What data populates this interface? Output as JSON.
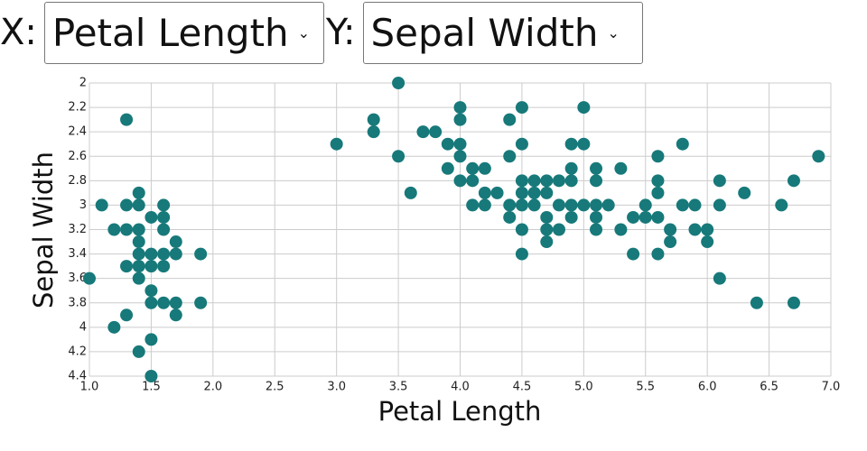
{
  "controls": {
    "x_label": "X:",
    "x_value": "Petal Length",
    "y_label": "Y:",
    "y_value": "Sepal Width"
  },
  "chart_data": {
    "type": "scatter",
    "x_label": "Petal Length",
    "y_label": "Sepal Width",
    "color": "#17797a",
    "grid": true,
    "xlim": [
      1,
      7
    ],
    "ylim": [
      4.4,
      2
    ],
    "xticks": [
      {
        "value": 1,
        "label": "1.0"
      },
      1.5,
      {
        "value": 2,
        "label": "2.0"
      },
      2.5,
      {
        "value": 3,
        "label": "3.0"
      },
      3.5,
      {
        "value": 4,
        "label": "4.0"
      },
      4.5,
      {
        "value": 5,
        "label": "5.0"
      },
      5.5,
      {
        "value": 6,
        "label": "6.0"
      },
      6.5,
      {
        "value": 7,
        "label": "7.0"
      }
    ],
    "yticks": [
      2,
      2.2,
      2.4,
      2.6,
      2.8,
      3,
      3.2,
      3.4,
      3.6,
      3.8,
      4,
      4.2,
      4.4
    ],
    "x": [
      1.3,
      1.1,
      1.0,
      1.2,
      1.3,
      1.3,
      1.3,
      1.3,
      1.2,
      1.4,
      1.4,
      1.4,
      1.4,
      1.4,
      1.4,
      1.4,
      1.4,
      1.5,
      1.5,
      1.5,
      1.5,
      1.5,
      1.5,
      1.5,
      1.6,
      1.6,
      1.6,
      1.6,
      1.6,
      1.6,
      1.7,
      1.7,
      1.7,
      1.7,
      1.9,
      1.9,
      3.0,
      3.3,
      3.3,
      3.5,
      3.5,
      3.6,
      3.7,
      3.8,
      3.9,
      3.9,
      4.0,
      4.0,
      4.0,
      4.0,
      4.0,
      4.1,
      4.1,
      4.1,
      4.2,
      4.2,
      4.2,
      4.3,
      4.4,
      4.4,
      4.4,
      4.4,
      4.5,
      4.5,
      4.5,
      4.5,
      4.5,
      4.5,
      4.5,
      4.6,
      4.6,
      4.6,
      4.7,
      4.7,
      4.7,
      4.7,
      4.7,
      4.8,
      4.8,
      4.8,
      4.9,
      4.9,
      4.9,
      4.9,
      4.9,
      5.0,
      5.0,
      5.0,
      5.1,
      5.1,
      5.1,
      5.1,
      5.1,
      5.2,
      5.3,
      5.3,
      5.4,
      5.4,
      5.5,
      5.5,
      5.6,
      5.6,
      5.6,
      5.6,
      5.6,
      5.7,
      5.7,
      5.8,
      5.8,
      5.9,
      5.9,
      6.0,
      6.0,
      6.1,
      6.1,
      6.1,
      6.3,
      6.4,
      6.6,
      6.7,
      6.7,
      6.9
    ],
    "y": [
      2.3,
      3.0,
      3.6,
      3.2,
      3.0,
      3.2,
      3.5,
      3.9,
      4.0,
      2.9,
      3.0,
      3.2,
      3.3,
      3.4,
      3.5,
      3.6,
      4.2,
      3.1,
      3.4,
      3.5,
      3.7,
      3.8,
      4.1,
      4.4,
      3.0,
      3.1,
      3.2,
      3.4,
      3.5,
      3.8,
      3.3,
      3.4,
      3.8,
      3.9,
      3.4,
      3.8,
      2.5,
      2.3,
      2.4,
      2.0,
      2.6,
      2.9,
      2.4,
      2.4,
      2.5,
      2.7,
      2.2,
      2.3,
      2.5,
      2.6,
      2.8,
      2.7,
      2.8,
      3.0,
      2.7,
      2.9,
      3.0,
      2.9,
      2.3,
      2.6,
      3.0,
      3.1,
      2.2,
      2.5,
      2.8,
      2.9,
      3.0,
      3.2,
      3.4,
      2.8,
      2.9,
      3.0,
      2.8,
      2.9,
      3.1,
      3.2,
      3.3,
      2.8,
      3.0,
      3.2,
      2.5,
      2.7,
      2.8,
      3.0,
      3.1,
      2.2,
      2.5,
      3.0,
      2.7,
      2.8,
      3.0,
      3.1,
      3.2,
      3.0,
      2.7,
      3.2,
      3.1,
      3.4,
      3.0,
      3.1,
      2.6,
      2.8,
      2.9,
      3.1,
      3.4,
      3.2,
      3.3,
      2.5,
      3.0,
      3.0,
      3.2,
      3.2,
      3.3,
      2.8,
      3.0,
      3.6,
      2.9,
      3.8,
      3.0,
      2.8,
      3.8,
      2.6
    ]
  }
}
